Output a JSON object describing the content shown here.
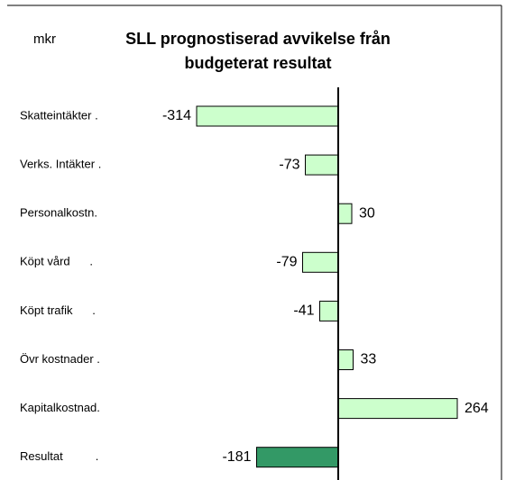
{
  "chart_data": {
    "type": "barh",
    "unit": "mkr",
    "title": [
      "SLL prognostiserad avvikelse från",
      "budgeterat resultat"
    ],
    "categories": [
      "Skatteintäkter .",
      "Verks. Intäkter .",
      "Personalkostn.",
      "Köpt vård      .",
      "Köpt trafik      .",
      "Övr kostnader .",
      "Kapitalkostnad.",
      "Resultat          ."
    ],
    "values": [
      -314,
      -73,
      30,
      -79,
      -41,
      33,
      264,
      -181
    ],
    "colors": [
      "#ccffcc",
      "#ccffcc",
      "#ccffcc",
      "#ccffcc",
      "#ccffcc",
      "#ccffcc",
      "#ccffcc",
      "#339966"
    ],
    "xlim": [
      -350,
      350
    ]
  }
}
